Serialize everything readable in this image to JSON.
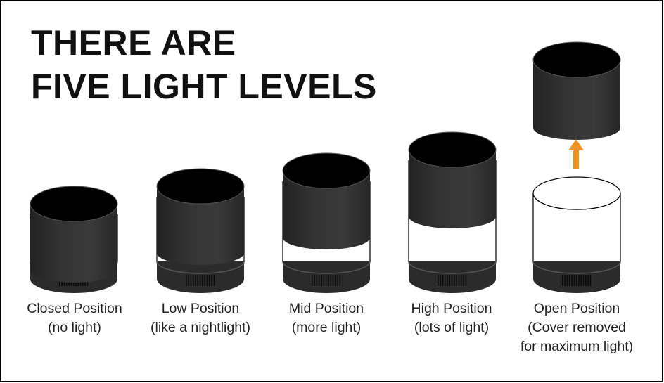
{
  "title": {
    "line1": "THERE ARE",
    "line2": "FIVE LIGHT LEVELS"
  },
  "colors": {
    "cover": "#333333",
    "cover_top": "#000000",
    "base": "#2b2b2b",
    "arrow": "#f0931e",
    "outline": "#000000",
    "light": "#ffffff"
  },
  "arrow_icon": "up-arrow-icon",
  "levels": [
    {
      "name": "closed",
      "label": "Closed Position",
      "sub": [
        "(no light)"
      ]
    },
    {
      "name": "low",
      "label": "Low Position",
      "sub": [
        "(like a nightlight)"
      ]
    },
    {
      "name": "mid",
      "label": "Mid Position",
      "sub": [
        "(more light)"
      ]
    },
    {
      "name": "high",
      "label": "High Position",
      "sub": [
        "(lots of light)"
      ]
    },
    {
      "name": "open",
      "label": "Open Position",
      "sub": [
        "(Cover removed",
        "for maximum light)"
      ]
    }
  ]
}
